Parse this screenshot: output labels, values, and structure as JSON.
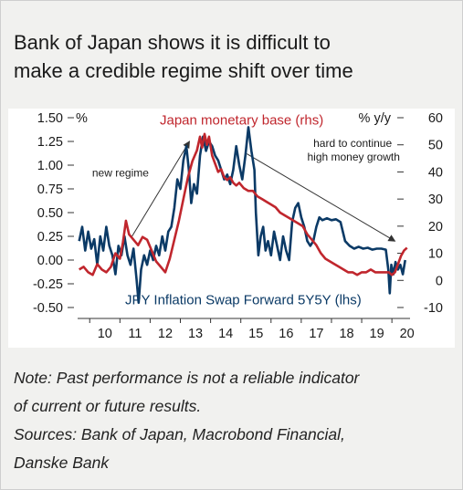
{
  "title_lines": [
    "Bank of Japan shows it is difficult  to",
    "make a credible regime shift over time"
  ],
  "note_lines": [
    "Note: Past performance is not a reliable indicator",
    "of current or future results.",
    "Sources: Bank of Japan, Macrobond Financial,",
    "Danske Bank"
  ],
  "colors": {
    "inflation_swap": "#0b3a66",
    "monetary_base": "#c0262d",
    "arrow": "#333333"
  },
  "chart_data": {
    "type": "line",
    "left_axis": {
      "unit": "%",
      "ticks": [
        1.5,
        1.25,
        1.0,
        0.75,
        0.5,
        0.25,
        0.0,
        -0.25,
        -0.5
      ],
      "tick_labels": [
        "1.50",
        "1.25",
        "1.00",
        "0.75",
        "0.50",
        "0.25",
        "0.00",
        "-0.25",
        "-0.50"
      ],
      "range": [
        -0.5,
        1.5
      ]
    },
    "right_axis": {
      "unit": "% y/y",
      "ticks": [
        60,
        50,
        40,
        30,
        20,
        10,
        0,
        -10
      ],
      "tick_labels": [
        "60",
        "50",
        "40",
        "30",
        "20",
        "10",
        "0",
        "-10"
      ],
      "range": [
        -10,
        60
      ]
    },
    "x_axis": {
      "tick_labels": [
        "10",
        "11",
        "12",
        "13",
        "14",
        "15",
        "16",
        "17",
        "18",
        "19",
        "20"
      ],
      "range": [
        2009.6,
        2020.6
      ]
    },
    "series": [
      {
        "name": "JPY Inflation Swap Forward 5Y5Y (lhs)",
        "axis": "left",
        "points": [
          [
            2009.65,
            0.2
          ],
          [
            2009.75,
            0.35
          ],
          [
            2009.85,
            0.1
          ],
          [
            2009.95,
            0.3
          ],
          [
            2010.05,
            0.12
          ],
          [
            2010.15,
            0.22
          ],
          [
            2010.25,
            -0.05
          ],
          [
            2010.35,
            0.25
          ],
          [
            2010.45,
            0.1
          ],
          [
            2010.55,
            0.35
          ],
          [
            2010.65,
            0.15
          ],
          [
            2010.75,
            0.05
          ],
          [
            2010.85,
            -0.15
          ],
          [
            2010.95,
            0.15
          ],
          [
            2011.05,
            0.05
          ],
          [
            2011.15,
            0.25
          ],
          [
            2011.25,
            0.05
          ],
          [
            2011.35,
            -0.05
          ],
          [
            2011.45,
            0.12
          ],
          [
            2011.55,
            -0.2
          ],
          [
            2011.62,
            -0.45
          ],
          [
            2011.7,
            -0.1
          ],
          [
            2011.8,
            0.05
          ],
          [
            2011.9,
            -0.05
          ],
          [
            2012.0,
            0.1
          ],
          [
            2012.1,
            0.0
          ],
          [
            2012.2,
            0.15
          ],
          [
            2012.3,
            0.05
          ],
          [
            2012.4,
            0.25
          ],
          [
            2012.5,
            0.1
          ],
          [
            2012.6,
            0.3
          ],
          [
            2012.7,
            0.35
          ],
          [
            2012.8,
            0.55
          ],
          [
            2012.9,
            0.85
          ],
          [
            2013.0,
            0.75
          ],
          [
            2013.1,
            1.05
          ],
          [
            2013.2,
            1.2
          ],
          [
            2013.28,
            0.95
          ],
          [
            2013.36,
            0.6
          ],
          [
            2013.45,
            0.8
          ],
          [
            2013.55,
            0.7
          ],
          [
            2013.65,
            1.1
          ],
          [
            2013.75,
            1.3
          ],
          [
            2013.85,
            1.15
          ],
          [
            2013.95,
            1.25
          ],
          [
            2014.05,
            1.2
          ],
          [
            2014.15,
            1.1
          ],
          [
            2014.25,
            1.05
          ],
          [
            2014.35,
            0.95
          ],
          [
            2014.45,
            0.85
          ],
          [
            2014.55,
            0.9
          ],
          [
            2014.65,
            0.8
          ],
          [
            2014.75,
            0.95
          ],
          [
            2014.85,
            1.2
          ],
          [
            2014.95,
            1.0
          ],
          [
            2015.05,
            0.85
          ],
          [
            2015.15,
            1.1
          ],
          [
            2015.25,
            1.4
          ],
          [
            2015.35,
            1.15
          ],
          [
            2015.45,
            0.95
          ],
          [
            2015.5,
            0.5
          ],
          [
            2015.58,
            0.05
          ],
          [
            2015.66,
            0.25
          ],
          [
            2015.74,
            0.35
          ],
          [
            2015.82,
            0.1
          ],
          [
            2015.9,
            0.2
          ],
          [
            2016.0,
            0.05
          ],
          [
            2016.1,
            0.3
          ],
          [
            2016.2,
            0.15
          ],
          [
            2016.3,
            0.0
          ],
          [
            2016.4,
            0.25
          ],
          [
            2016.5,
            0.1
          ],
          [
            2016.6,
            0.0
          ],
          [
            2016.7,
            0.4
          ],
          [
            2016.8,
            0.55
          ],
          [
            2016.9,
            0.6
          ],
          [
            2017.0,
            0.45
          ],
          [
            2017.1,
            0.35
          ],
          [
            2017.2,
            0.2
          ],
          [
            2017.3,
            0.15
          ],
          [
            2017.4,
            0.2
          ],
          [
            2017.5,
            0.35
          ],
          [
            2017.6,
            0.45
          ],
          [
            2017.7,
            0.42
          ],
          [
            2017.85,
            0.44
          ],
          [
            2018.0,
            0.42
          ],
          [
            2018.15,
            0.43
          ],
          [
            2018.3,
            0.4
          ],
          [
            2018.45,
            0.2
          ],
          [
            2018.6,
            0.15
          ],
          [
            2018.75,
            0.12
          ],
          [
            2018.9,
            0.14
          ],
          [
            2019.05,
            0.12
          ],
          [
            2019.2,
            0.13
          ],
          [
            2019.35,
            0.11
          ],
          [
            2019.5,
            0.12
          ],
          [
            2019.65,
            0.12
          ],
          [
            2019.8,
            0.11
          ],
          [
            2019.88,
            -0.1
          ],
          [
            2019.93,
            -0.35
          ],
          [
            2019.98,
            -0.05
          ],
          [
            2020.05,
            -0.15
          ],
          [
            2020.12,
            -0.02
          ],
          [
            2020.2,
            -0.1
          ],
          [
            2020.28,
            -0.05
          ],
          [
            2020.36,
            -0.15
          ],
          [
            2020.44,
            0.0
          ]
        ]
      },
      {
        "name": "Japan monetary base (rhs)",
        "axis": "right",
        "points": [
          [
            2009.65,
            4
          ],
          [
            2009.8,
            5
          ],
          [
            2009.95,
            3
          ],
          [
            2010.1,
            2
          ],
          [
            2010.25,
            6
          ],
          [
            2010.4,
            4
          ],
          [
            2010.55,
            3
          ],
          [
            2010.7,
            5
          ],
          [
            2010.85,
            10
          ],
          [
            2011.0,
            8
          ],
          [
            2011.1,
            14
          ],
          [
            2011.2,
            22
          ],
          [
            2011.3,
            17
          ],
          [
            2011.45,
            15
          ],
          [
            2011.6,
            13
          ],
          [
            2011.75,
            16
          ],
          [
            2011.9,
            15
          ],
          [
            2012.05,
            11
          ],
          [
            2012.2,
            7
          ],
          [
            2012.35,
            5
          ],
          [
            2012.5,
            3
          ],
          [
            2012.65,
            8
          ],
          [
            2012.8,
            15
          ],
          [
            2012.95,
            22
          ],
          [
            2013.1,
            30
          ],
          [
            2013.25,
            38
          ],
          [
            2013.4,
            44
          ],
          [
            2013.55,
            48
          ],
          [
            2013.65,
            53
          ],
          [
            2013.72,
            49
          ],
          [
            2013.8,
            54
          ],
          [
            2013.88,
            50
          ],
          [
            2013.95,
            53
          ],
          [
            2014.05,
            46
          ],
          [
            2014.15,
            43
          ],
          [
            2014.25,
            40
          ],
          [
            2014.35,
            41
          ],
          [
            2014.45,
            38
          ],
          [
            2014.55,
            37
          ],
          [
            2014.65,
            38
          ],
          [
            2014.75,
            36
          ],
          [
            2014.85,
            35
          ],
          [
            2014.95,
            36
          ],
          [
            2015.1,
            34
          ],
          [
            2015.25,
            33
          ],
          [
            2015.4,
            33
          ],
          [
            2015.55,
            31
          ],
          [
            2015.7,
            30
          ],
          [
            2015.85,
            29
          ],
          [
            2016.0,
            28
          ],
          [
            2016.15,
            27
          ],
          [
            2016.3,
            25
          ],
          [
            2016.45,
            24
          ],
          [
            2016.6,
            23
          ],
          [
            2016.75,
            22
          ],
          [
            2016.9,
            21
          ],
          [
            2017.05,
            20
          ],
          [
            2017.2,
            17
          ],
          [
            2017.35,
            15
          ],
          [
            2017.5,
            13
          ],
          [
            2017.65,
            10
          ],
          [
            2017.8,
            8
          ],
          [
            2017.95,
            7
          ],
          [
            2018.1,
            6
          ],
          [
            2018.25,
            5
          ],
          [
            2018.4,
            4
          ],
          [
            2018.55,
            3
          ],
          [
            2018.7,
            3
          ],
          [
            2018.85,
            2
          ],
          [
            2019.0,
            3
          ],
          [
            2019.15,
            3
          ],
          [
            2019.3,
            4
          ],
          [
            2019.45,
            3
          ],
          [
            2019.6,
            3
          ],
          [
            2019.75,
            3
          ],
          [
            2019.9,
            3
          ],
          [
            2020.0,
            2
          ],
          [
            2020.1,
            3
          ],
          [
            2020.2,
            6
          ],
          [
            2020.3,
            9
          ],
          [
            2020.4,
            11
          ],
          [
            2020.5,
            12
          ]
        ]
      }
    ],
    "annotations": [
      {
        "text": "new regime",
        "lines": [
          "new regime"
        ]
      },
      {
        "text": "hard to continue high money growth",
        "lines": [
          "hard to continue",
          "high money growth"
        ]
      }
    ]
  }
}
